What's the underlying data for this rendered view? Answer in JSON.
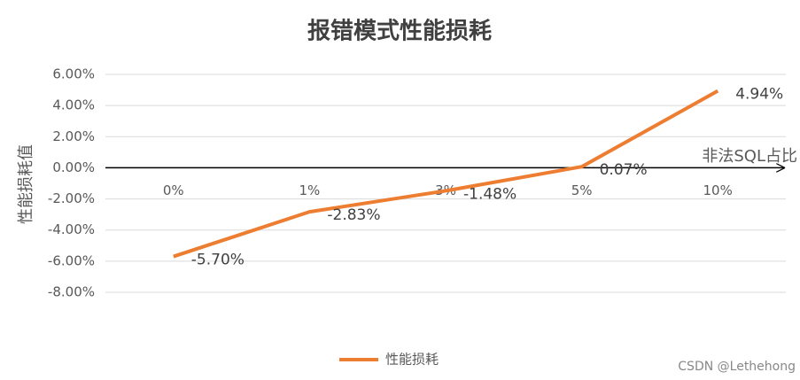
{
  "chart_data": {
    "type": "line",
    "title": "报错模式性能损耗",
    "y_label": "性能损耗值",
    "x_label": "非法SQL占比",
    "categories": [
      "0%",
      "1%",
      "3%",
      "5%",
      "10%"
    ],
    "series": [
      {
        "name": "性能损耗",
        "color": "#ed7d31",
        "values": [
          -5.7,
          -2.83,
          -1.48,
          0.07,
          4.94
        ],
        "value_labels": [
          "-5.70%",
          "-2.83%",
          "-1.48%",
          "0.07%",
          "4.94%"
        ]
      }
    ],
    "ylim": [
      -8,
      6
    ],
    "yticks": [
      {
        "value": 6,
        "label": "6.00%"
      },
      {
        "value": 4,
        "label": "4.00%"
      },
      {
        "value": 2,
        "label": "2.00%"
      },
      {
        "value": 0,
        "label": "0.00%"
      },
      {
        "value": -2,
        "label": "-2.00%"
      },
      {
        "value": -4,
        "label": "-4.00%"
      },
      {
        "value": -6,
        "label": "-6.00%"
      },
      {
        "value": -8,
        "label": "-8.00%"
      }
    ],
    "grid": true,
    "legend": "bottom",
    "watermark": "CSDN @Lethehong"
  }
}
